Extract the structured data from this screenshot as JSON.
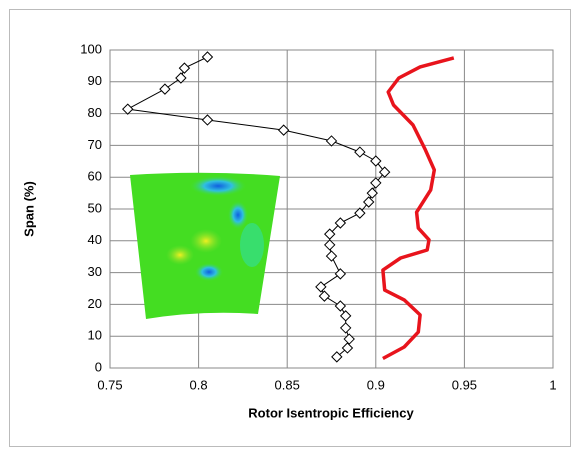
{
  "chart_data": {
    "type": "line",
    "xlabel": "Rotor Isentropic Efficiency",
    "ylabel": "Span (%)",
    "xlim": [
      0.75,
      1
    ],
    "xticks": [
      0.75,
      0.8,
      0.85,
      0.9,
      0.95,
      1
    ],
    "ylim": [
      0,
      100
    ],
    "yticks": [
      0,
      10,
      20,
      30,
      40,
      50,
      60,
      70,
      80,
      90,
      100
    ],
    "grid": true,
    "series": [
      {
        "color": "#000000",
        "marker": "diamond",
        "x": [
          0.878,
          0.884,
          0.885,
          0.883,
          0.883,
          0.88,
          0.871,
          0.869,
          0.88,
          0.875,
          0.874,
          0.874,
          0.88,
          0.891,
          0.896,
          0.898,
          0.9,
          0.905,
          0.9,
          0.891,
          0.875,
          0.848,
          0.805,
          0.76,
          0.781,
          0.79,
          0.792,
          0.805
        ],
        "values": [
          3.5,
          6.3,
          9.1,
          12.6,
          16.4,
          19.5,
          22.6,
          25.5,
          29.6,
          35.2,
          38.7,
          42.1,
          45.6,
          48.7,
          52.2,
          55,
          58.2,
          61.6,
          65.1,
          67.9,
          71.4,
          74.8,
          78,
          81.4,
          87.7,
          91.2,
          94.3,
          97.8
        ]
      },
      {
        "color": "#e8141c",
        "marker": "none",
        "x": [
          0.904,
          0.916,
          0.924,
          0.925,
          0.916,
          0.905,
          0.904,
          0.914,
          0.929,
          0.93,
          0.924,
          0.923,
          0.931,
          0.933,
          0.928,
          0.921,
          0.91,
          0.907,
          0.913,
          0.925,
          0.944
        ],
        "values": [
          3,
          6.6,
          11.3,
          16.7,
          21.4,
          24.5,
          30.8,
          34.6,
          37.1,
          40.3,
          44,
          49,
          56,
          62.3,
          68.6,
          76.4,
          82.7,
          86.8,
          91.2,
          94.7,
          97.5
        ]
      }
    ]
  }
}
